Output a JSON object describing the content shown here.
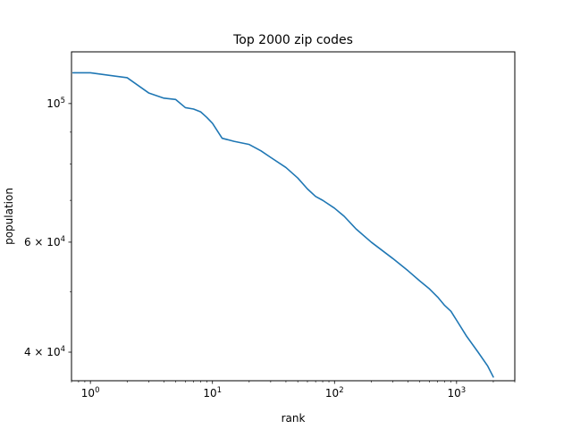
{
  "chart_data": {
    "type": "line",
    "title": "Top 2000 zip codes",
    "xlabel": "rank",
    "ylabel": "population",
    "xscale": "log",
    "yscale": "log",
    "xlim": [
      0.7,
      3000
    ],
    "ylim": [
      36000,
      121000
    ],
    "grid": false,
    "line_color": "#1f77b4",
    "x_ticks": [
      {
        "value": 1,
        "base": "10",
        "exp": "0"
      },
      {
        "value": 10,
        "base": "10",
        "exp": "1"
      },
      {
        "value": 100,
        "base": "10",
        "exp": "2"
      },
      {
        "value": 1000,
        "base": "10",
        "exp": "3"
      }
    ],
    "y_ticks": [
      {
        "value": 40000,
        "mantissa": "4",
        "times": "×",
        "base": "10",
        "exp": "4"
      },
      {
        "value": 60000,
        "mantissa": "6",
        "times": "×",
        "base": "10",
        "exp": "4"
      },
      {
        "value": 100000,
        "mantissa": "",
        "times": "",
        "base": "10",
        "exp": "5"
      }
    ],
    "series": [
      {
        "x": [
          0.72,
          1,
          2,
          3,
          4,
          5,
          6,
          7,
          8,
          9,
          10,
          12,
          15,
          20,
          25,
          30,
          40,
          50,
          60,
          70,
          80,
          100,
          120,
          150,
          200,
          300,
          400,
          500,
          600,
          700,
          800,
          900,
          1000,
          1200,
          1500,
          1800,
          2000
        ],
        "y": [
          112000,
          112000,
          110000,
          104000,
          102000,
          101500,
          98500,
          98000,
          97000,
          95000,
          93000,
          88000,
          87000,
          86000,
          84000,
          82000,
          79000,
          76000,
          73000,
          71000,
          70000,
          68000,
          66000,
          63000,
          60000,
          56500,
          54000,
          52000,
          50500,
          49000,
          47500,
          46500,
          45000,
          42500,
          40000,
          38000,
          36500
        ]
      }
    ]
  }
}
